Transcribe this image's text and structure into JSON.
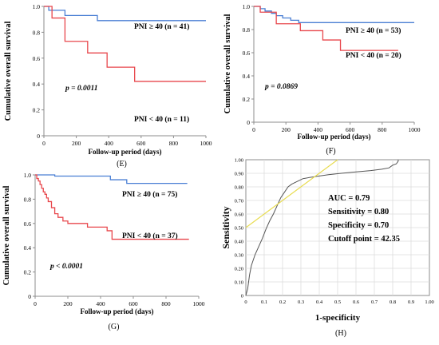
{
  "colors": {
    "high": "#4a7fd4",
    "low": "#e8474c",
    "ref": "#e8dc50",
    "roc": "#555555",
    "axis": "#8c8c8c",
    "grid": "#dddddd"
  },
  "chart_data": [
    {
      "id": "E",
      "type": "line",
      "panel_label": "(E)",
      "xlabel": "Follow-up period (days)",
      "ylabel": "Cumulative overall survival",
      "xlim": [
        0,
        1000
      ],
      "ylim": [
        0,
        1.0
      ],
      "xticks": [
        "0",
        "200",
        "400",
        "600",
        "800",
        "1000"
      ],
      "yticks": [
        "0",
        "0.2",
        "0.4",
        "0.6",
        "0.8",
        "1.0"
      ],
      "series": [
        {
          "key": "high",
          "name": "PNI ≥ 40 (n = 41)",
          "x": [
            0,
            30,
            130,
            330,
            1000
          ],
          "y": [
            1.0,
            0.97,
            0.93,
            0.89,
            0.89
          ]
        },
        {
          "key": "low",
          "name": "PNI < 40 (n = 11)",
          "x": [
            0,
            50,
            130,
            270,
            390,
            560,
            1000
          ],
          "y": [
            1.0,
            0.91,
            0.73,
            0.64,
            0.53,
            0.42,
            0.42
          ]
        }
      ],
      "annotation": "p = 0.0011"
    },
    {
      "id": "F",
      "type": "line",
      "panel_label": "(F)",
      "xlabel": "Follow-up period (days)",
      "ylabel": "Cumulative overall survival",
      "xlim": [
        0,
        1000
      ],
      "ylim": [
        0,
        1.0
      ],
      "xticks": [
        "0",
        "200",
        "400",
        "600",
        "800",
        "1000"
      ],
      "yticks": [
        "0",
        "0.2",
        "0.4",
        "0.6",
        "0.8",
        "1.0"
      ],
      "series": [
        {
          "key": "high",
          "name": "PNI ≥ 40 (n = 53)",
          "x": [
            0,
            40,
            70,
            110,
            140,
            180,
            230,
            280,
            1000
          ],
          "y": [
            1.0,
            0.98,
            0.96,
            0.94,
            0.92,
            0.9,
            0.88,
            0.86,
            0.86
          ]
        },
        {
          "key": "low",
          "name": "PNI < 40 (n = 20)",
          "x": [
            0,
            40,
            140,
            290,
            430,
            540,
            900
          ],
          "y": [
            1.0,
            0.95,
            0.85,
            0.79,
            0.71,
            0.62,
            0.62
          ]
        }
      ],
      "annotation": "p = 0.0869"
    },
    {
      "id": "G",
      "type": "line",
      "panel_label": "(G)",
      "xlabel": "Follow-up period (days)",
      "ylabel": "Cumulative overall survival",
      "xlim": [
        0,
        1000
      ],
      "ylim": [
        0,
        1.0
      ],
      "xticks": [
        "0",
        "200",
        "400",
        "600",
        "800",
        "1000"
      ],
      "yticks": [
        "0",
        "0.2",
        "0.4",
        "0.6",
        "0.8",
        "1.0"
      ],
      "series": [
        {
          "key": "high",
          "name": "PNI ≥ 40 (n = 75)",
          "x": [
            0,
            120,
            460,
            560,
            930
          ],
          "y": [
            1.0,
            0.99,
            0.96,
            0.93,
            0.93
          ]
        },
        {
          "key": "low",
          "name": "PNI < 40 (n = 37)",
          "x": [
            0,
            10,
            20,
            30,
            40,
            50,
            60,
            70,
            80,
            100,
            120,
            140,
            170,
            200,
            320,
            440,
            470,
            940
          ],
          "y": [
            1.0,
            0.97,
            0.95,
            0.92,
            0.89,
            0.86,
            0.84,
            0.81,
            0.78,
            0.73,
            0.68,
            0.65,
            0.62,
            0.6,
            0.57,
            0.54,
            0.47,
            0.47
          ]
        }
      ],
      "annotation": "p < 0.0001"
    },
    {
      "id": "H",
      "type": "line",
      "panel_label": "(H)",
      "xlabel": "1-specificity",
      "ylabel": "Sensitivity",
      "xlim": [
        0,
        1.0
      ],
      "ylim": [
        0,
        1.0
      ],
      "xticks": [
        "0",
        "0.1",
        "0.2",
        "0.3",
        "0.4",
        "0.5",
        "0.6",
        "0.7",
        "0.8",
        "0.9",
        "1.00"
      ],
      "yticks": [
        "0",
        "0.10",
        "0.20",
        "0.30",
        "0.40",
        "0.50",
        "0.60",
        "0.70",
        "0.80",
        "0.90",
        "1.00"
      ],
      "grid": true,
      "series": [
        {
          "key": "roc",
          "x": [
            0,
            0.01,
            0.02,
            0.03,
            0.05,
            0.07,
            0.09,
            0.11,
            0.13,
            0.15,
            0.17,
            0.19,
            0.21,
            0.23,
            0.25,
            0.28,
            0.31,
            0.35,
            0.4,
            0.45,
            0.52,
            0.6,
            0.68,
            0.74,
            0.78,
            0.8,
            0.82,
            0.83,
            0.83
          ],
          "y": [
            0,
            0.05,
            0.15,
            0.22,
            0.3,
            0.36,
            0.42,
            0.49,
            0.55,
            0.6,
            0.66,
            0.72,
            0.76,
            0.8,
            0.82,
            0.84,
            0.86,
            0.87,
            0.88,
            0.89,
            0.9,
            0.91,
            0.92,
            0.93,
            0.94,
            0.96,
            0.97,
            0.99,
            1.0
          ]
        },
        {
          "key": "ref",
          "x": [
            0,
            0.5
          ],
          "y": [
            0.5,
            1.0
          ]
        }
      ],
      "annotations": [
        "AUC = 0.79",
        "Sensitivity = 0.80",
        "Specificity = 0.70",
        "Cutoff point = 42.35"
      ]
    }
  ]
}
